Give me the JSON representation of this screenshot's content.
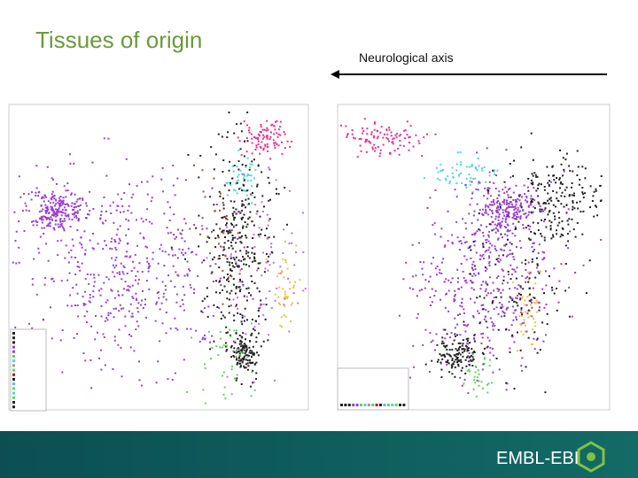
{
  "title": "Tissues of origin",
  "annotation": "Neurological axis",
  "footer": {
    "logo": "EMBL-EBI"
  }
}
